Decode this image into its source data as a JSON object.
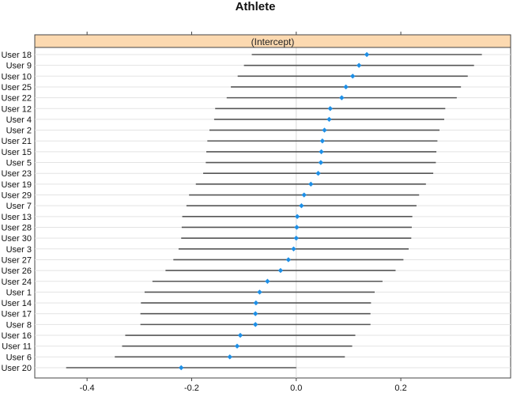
{
  "chart_data": {
    "type": "dotplot",
    "title": "Athlete",
    "panel_label": "(Intercept)",
    "xlim": [
      -0.5,
      0.41
    ],
    "xticks": [
      -0.4,
      -0.2,
      0.0,
      0.2
    ],
    "xtick_labels": [
      "-0.4",
      "-0.2",
      "0.0",
      "0.2"
    ],
    "colors": {
      "point": "#1e8fe6",
      "interval": "#555555",
      "strip": "#fcd9b0",
      "grid": "#e3e3e3",
      "zero_line": "#d9d9d9"
    },
    "groups": [
      {
        "label": "User 18",
        "estimate": 0.135,
        "lower": -0.085,
        "upper": 0.355
      },
      {
        "label": "User 9",
        "estimate": 0.12,
        "lower": -0.1,
        "upper": 0.34
      },
      {
        "label": "User 10",
        "estimate": 0.108,
        "lower": -0.112,
        "upper": 0.328
      },
      {
        "label": "User 25",
        "estimate": 0.095,
        "lower": -0.125,
        "upper": 0.315
      },
      {
        "label": "User 22",
        "estimate": 0.087,
        "lower": -0.133,
        "upper": 0.307
      },
      {
        "label": "User 12",
        "estimate": 0.065,
        "lower": -0.155,
        "upper": 0.285
      },
      {
        "label": "User 4",
        "estimate": 0.063,
        "lower": -0.157,
        "upper": 0.283
      },
      {
        "label": "User 2",
        "estimate": 0.054,
        "lower": -0.166,
        "upper": 0.274
      },
      {
        "label": "User 21",
        "estimate": 0.05,
        "lower": -0.17,
        "upper": 0.27
      },
      {
        "label": "User 15",
        "estimate": 0.048,
        "lower": -0.172,
        "upper": 0.268
      },
      {
        "label": "User 5",
        "estimate": 0.047,
        "lower": -0.173,
        "upper": 0.267
      },
      {
        "label": "User 23",
        "estimate": 0.042,
        "lower": -0.178,
        "upper": 0.262
      },
      {
        "label": "User 19",
        "estimate": 0.028,
        "lower": -0.192,
        "upper": 0.248
      },
      {
        "label": "User 29",
        "estimate": 0.015,
        "lower": -0.205,
        "upper": 0.235
      },
      {
        "label": "User 7",
        "estimate": 0.01,
        "lower": -0.21,
        "upper": 0.23
      },
      {
        "label": "User 13",
        "estimate": 0.002,
        "lower": -0.218,
        "upper": 0.222
      },
      {
        "label": "User 28",
        "estimate": 0.001,
        "lower": -0.219,
        "upper": 0.221
      },
      {
        "label": "User 30",
        "estimate": 0.0,
        "lower": -0.22,
        "upper": 0.22
      },
      {
        "label": "User 3",
        "estimate": -0.005,
        "lower": -0.225,
        "upper": 0.215
      },
      {
        "label": "User 27",
        "estimate": -0.015,
        "lower": -0.235,
        "upper": 0.205
      },
      {
        "label": "User 26",
        "estimate": -0.03,
        "lower": -0.25,
        "upper": 0.19
      },
      {
        "label": "User 24",
        "estimate": -0.055,
        "lower": -0.275,
        "upper": 0.165
      },
      {
        "label": "User 1",
        "estimate": -0.07,
        "lower": -0.29,
        "upper": 0.15
      },
      {
        "label": "User 14",
        "estimate": -0.077,
        "lower": -0.297,
        "upper": 0.143
      },
      {
        "label": "User 17",
        "estimate": -0.078,
        "lower": -0.298,
        "upper": 0.142
      },
      {
        "label": "User 8",
        "estimate": -0.078,
        "lower": -0.298,
        "upper": 0.142
      },
      {
        "label": "User 16",
        "estimate": -0.107,
        "lower": -0.327,
        "upper": 0.113
      },
      {
        "label": "User 11",
        "estimate": -0.113,
        "lower": -0.333,
        "upper": 0.107
      },
      {
        "label": "User 6",
        "estimate": -0.127,
        "lower": -0.347,
        "upper": 0.093
      },
      {
        "label": "User 20",
        "estimate": -0.22,
        "lower": -0.44,
        "upper": 0.0
      }
    ]
  }
}
